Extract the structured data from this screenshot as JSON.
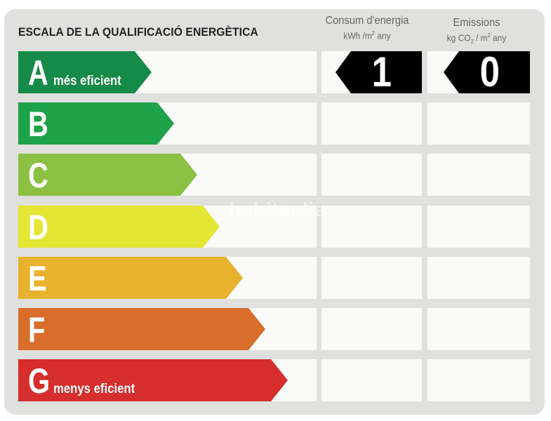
{
  "title": "ESCALA DE LA QUALIFICACIÓ ENERGÈTICA",
  "columns": {
    "consumption": {
      "label": "Consum d'energia",
      "unit_prefix": "kWh /m",
      "unit_exp": "2",
      "unit_suffix": " any"
    },
    "emissions": {
      "label": "Emissions",
      "unit_prefix": "kg CO",
      "unit_sub": "2",
      "unit_mid": " / m",
      "unit_exp": "2",
      "unit_suffix": " any"
    }
  },
  "bands": [
    {
      "letter": "A",
      "note": "més eficient",
      "color": "#168a48"
    },
    {
      "letter": "B",
      "note": "",
      "color": "#1ea24a"
    },
    {
      "letter": "C",
      "note": "",
      "color": "#8cc043"
    },
    {
      "letter": "D",
      "note": "",
      "color": "#e5e533"
    },
    {
      "letter": "E",
      "note": "",
      "color": "#e8b22d"
    },
    {
      "letter": "F",
      "note": "",
      "color": "#d86d2c"
    },
    {
      "letter": "G",
      "note": "menys eficient",
      "color": "#d52e2c"
    }
  ],
  "rating": {
    "consumption_value": "1",
    "emissions_value": "0",
    "row": "A"
  },
  "watermark": "habitaclia"
}
